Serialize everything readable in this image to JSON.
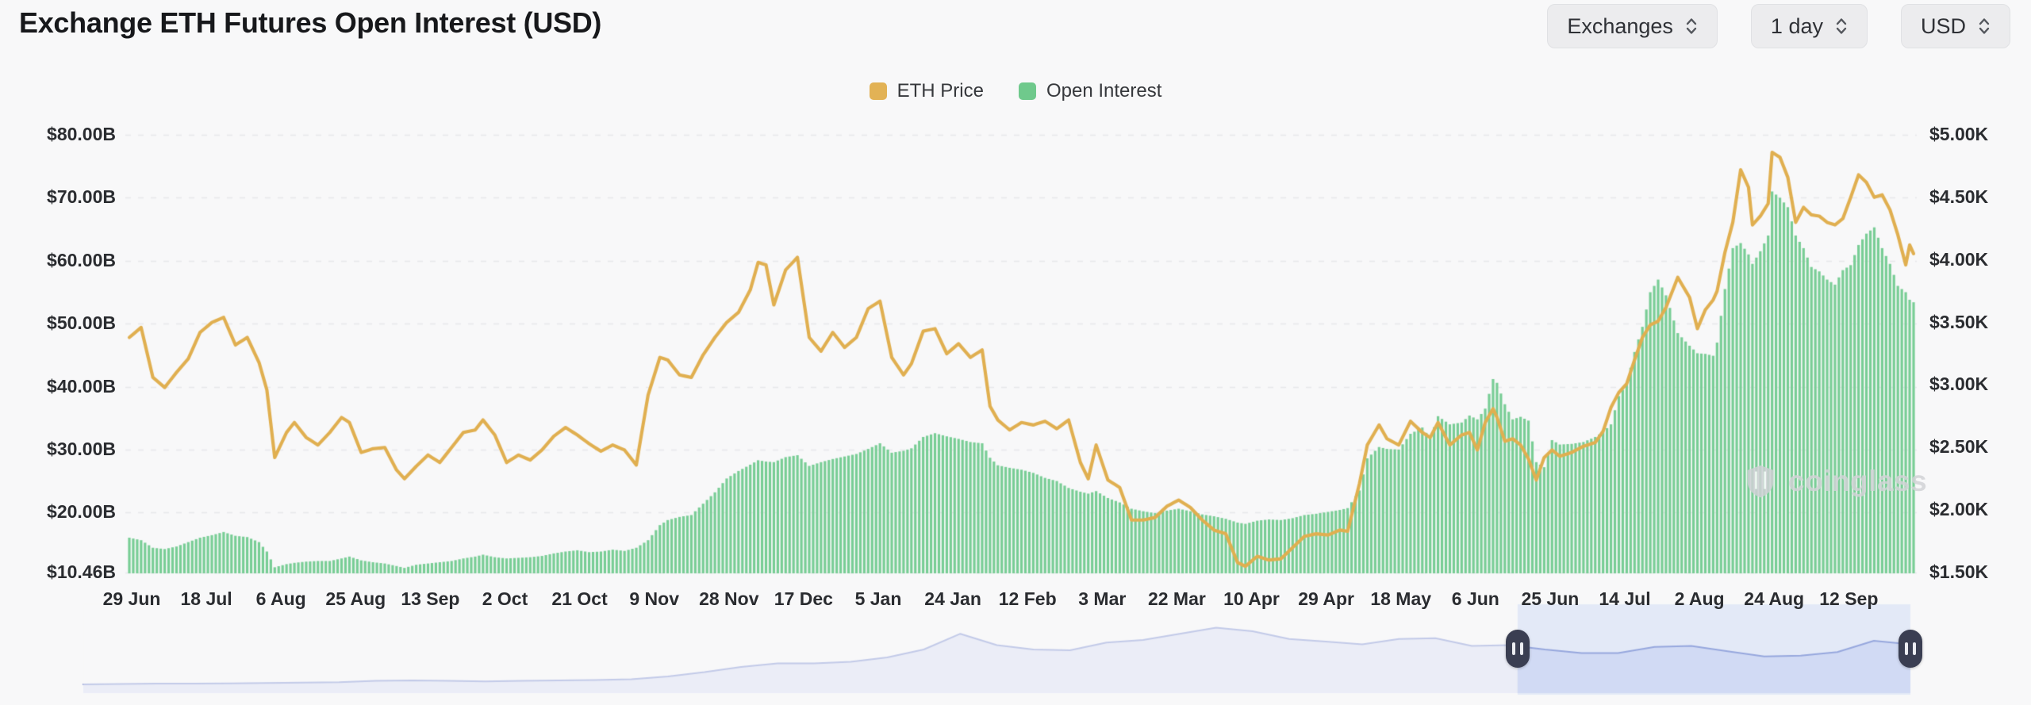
{
  "header": {
    "title": "Exchange ETH Futures Open Interest (USD)",
    "controls": [
      {
        "label": "Exchanges"
      },
      {
        "label": "1 day"
      },
      {
        "label": "USD"
      }
    ]
  },
  "legend": {
    "items": [
      {
        "label": "ETH Price",
        "color": "#e2b255"
      },
      {
        "label": "Open Interest",
        "color": "#6fc98c"
      }
    ]
  },
  "watermark": {
    "text": "coinglass"
  },
  "colors": {
    "background": "#f8f8f9",
    "gridline": "#e7e8ea",
    "bar_green": "#78cd95",
    "line_gold": "#e0af50",
    "nav_area": "#dce1f4",
    "nav_line": "#8292d2",
    "nav_selection": "#becdf3",
    "nav_handle": "#3a3e52"
  },
  "chart_data": {
    "type": "mixed",
    "title": "Exchange ETH Futures Open Interest (USD)",
    "grid": "horizontal-dashed",
    "legend_position": "top-center",
    "left_axis": {
      "title": "Open Interest (USD)",
      "min": 10.46,
      "max": 80,
      "tick_values": [
        80,
        70,
        60,
        50,
        40,
        30,
        20,
        10.46
      ],
      "tick_labels": [
        "$80.00B",
        "$70.00B",
        "$60.00B",
        "$50.00B",
        "$40.00B",
        "$30.00B",
        "$20.00B",
        "$10.46B"
      ]
    },
    "right_axis": {
      "title": "ETH Price (USD)",
      "min": 1.5,
      "max": 5.0,
      "tick_values": [
        5.0,
        4.5,
        4.0,
        3.5,
        3.0,
        2.5,
        2.0,
        1.5
      ],
      "tick_labels": [
        "$5.00K",
        "$4.50K",
        "$4.00K",
        "$3.50K",
        "$3.00K",
        "$2.50K",
        "$2.00K",
        "$1.50K"
      ]
    },
    "x_ticks": [
      "29 Jun",
      "18 Jul",
      "6 Aug",
      "25 Aug",
      "13 Sep",
      "2 Oct",
      "21 Oct",
      "9 Nov",
      "28 Nov",
      "17 Dec",
      "5 Jan",
      "24 Jan",
      "12 Feb",
      "3 Mar",
      "22 Mar",
      "10 Apr",
      "29 Apr",
      "18 May",
      "6 Jun",
      "25 Jun",
      "14 Jul",
      "2 Aug",
      "24 Aug",
      "12 Sep"
    ],
    "dates": [
      "2024-06-29",
      "2024-07-02",
      "2024-07-05",
      "2024-07-08",
      "2024-07-11",
      "2024-07-14",
      "2024-07-17",
      "2024-07-20",
      "2024-07-23",
      "2024-07-26",
      "2024-07-29",
      "2024-08-01",
      "2024-08-03",
      "2024-08-05",
      "2024-08-08",
      "2024-08-10",
      "2024-08-13",
      "2024-08-16",
      "2024-08-19",
      "2024-08-22",
      "2024-08-24",
      "2024-08-27",
      "2024-08-30",
      "2024-09-02",
      "2024-09-05",
      "2024-09-07",
      "2024-09-10",
      "2024-09-13",
      "2024-09-16",
      "2024-09-19",
      "2024-09-22",
      "2024-09-25",
      "2024-09-27",
      "2024-09-30",
      "2024-10-03",
      "2024-10-06",
      "2024-10-09",
      "2024-10-12",
      "2024-10-15",
      "2024-10-18",
      "2024-10-21",
      "2024-10-24",
      "2024-10-27",
      "2024-10-30",
      "2024-11-02",
      "2024-11-05",
      "2024-11-08",
      "2024-11-11",
      "2024-11-13",
      "2024-11-16",
      "2024-11-19",
      "2024-11-22",
      "2024-11-25",
      "2024-11-28",
      "2024-12-01",
      "2024-12-04",
      "2024-12-06",
      "2024-12-08",
      "2024-12-10",
      "2024-12-13",
      "2024-12-16",
      "2024-12-19",
      "2024-12-22",
      "2024-12-25",
      "2024-12-28",
      "2024-12-31",
      "2025-01-03",
      "2025-01-06",
      "2025-01-09",
      "2025-01-12",
      "2025-01-14",
      "2025-01-17",
      "2025-01-20",
      "2025-01-23",
      "2025-01-26",
      "2025-01-29",
      "2025-02-01",
      "2025-02-03",
      "2025-02-05",
      "2025-02-08",
      "2025-02-11",
      "2025-02-14",
      "2025-02-17",
      "2025-02-20",
      "2025-02-23",
      "2025-02-26",
      "2025-02-28",
      "2025-03-02",
      "2025-03-05",
      "2025-03-08",
      "2025-03-11",
      "2025-03-14",
      "2025-03-17",
      "2025-03-20",
      "2025-03-23",
      "2025-03-26",
      "2025-03-29",
      "2025-04-01",
      "2025-04-04",
      "2025-04-07",
      "2025-04-09",
      "2025-04-12",
      "2025-04-15",
      "2025-04-18",
      "2025-04-21",
      "2025-04-24",
      "2025-04-27",
      "2025-04-30",
      "2025-05-03",
      "2025-05-05",
      "2025-05-08",
      "2025-05-10",
      "2025-05-13",
      "2025-05-15",
      "2025-05-18",
      "2025-05-21",
      "2025-05-24",
      "2025-05-26",
      "2025-05-28",
      "2025-05-31",
      "2025-06-03",
      "2025-06-05",
      "2025-06-07",
      "2025-06-09",
      "2025-06-11",
      "2025-06-12",
      "2025-06-14",
      "2025-06-16",
      "2025-06-18",
      "2025-06-20",
      "2025-06-22",
      "2025-06-24",
      "2025-06-26",
      "2025-06-28",
      "2025-07-01",
      "2025-07-04",
      "2025-07-07",
      "2025-07-09",
      "2025-07-11",
      "2025-07-13",
      "2025-07-15",
      "2025-07-17",
      "2025-07-19",
      "2025-07-21",
      "2025-07-23",
      "2025-07-25",
      "2025-07-28",
      "2025-07-31",
      "2025-08-02",
      "2025-08-04",
      "2025-08-06",
      "2025-08-07",
      "2025-08-09",
      "2025-08-11",
      "2025-08-13",
      "2025-08-15",
      "2025-08-16",
      "2025-08-18",
      "2025-08-20",
      "2025-08-21",
      "2025-08-23",
      "2025-08-25",
      "2025-08-27",
      "2025-08-29",
      "2025-08-31",
      "2025-09-02",
      "2025-09-04",
      "2025-09-06",
      "2025-09-08",
      "2025-09-10",
      "2025-09-12",
      "2025-09-14",
      "2025-09-16",
      "2025-09-18",
      "2025-09-20",
      "2025-09-22",
      "2025-09-24",
      "2025-09-25",
      "2025-09-26"
    ],
    "series": [
      {
        "name": "Open Interest",
        "type": "bar",
        "axis": "left",
        "unit": "USD billions",
        "color": "#78cd95",
        "values": [
          16.0,
          15.6,
          14.4,
          14.2,
          14.6,
          15.3,
          16.0,
          16.4,
          16.9,
          16.3,
          16.1,
          15.3,
          13.8,
          11.3,
          11.8,
          12.0,
          12.2,
          12.3,
          12.3,
          12.7,
          13.0,
          12.4,
          12.1,
          11.9,
          11.5,
          11.2,
          11.7,
          11.9,
          12.1,
          12.3,
          12.7,
          13.0,
          13.3,
          12.9,
          12.7,
          12.8,
          12.9,
          13.1,
          13.5,
          13.8,
          14.0,
          13.7,
          13.8,
          14.1,
          13.9,
          14.4,
          15.6,
          18.0,
          18.8,
          19.3,
          19.6,
          21.4,
          23.2,
          25.4,
          26.6,
          27.6,
          28.3,
          28.1,
          28.0,
          28.8,
          29.1,
          27.4,
          28.0,
          28.5,
          28.9,
          29.3,
          30.1,
          31.0,
          29.5,
          29.8,
          30.2,
          32.0,
          32.6,
          32.1,
          31.7,
          31.2,
          31.0,
          28.7,
          27.5,
          27.1,
          26.8,
          26.3,
          25.5,
          25.0,
          23.9,
          23.3,
          23.0,
          23.4,
          22.3,
          21.6,
          20.6,
          20.2,
          19.9,
          20.3,
          20.6,
          20.2,
          19.7,
          19.4,
          19.0,
          18.4,
          18.2,
          18.7,
          18.9,
          18.8,
          19.1,
          19.6,
          19.8,
          20.1,
          20.4,
          20.7,
          23.5,
          28.6,
          30.4,
          30.1,
          30.0,
          32.5,
          33.5,
          31.8,
          35.3,
          34.0,
          34.3,
          35.4,
          34.8,
          36.5,
          41.2,
          40.6,
          37.2,
          34.8,
          35.2,
          34.6,
          28.0,
          27.2,
          31.5,
          30.8,
          30.9,
          31.2,
          32.0,
          32.8,
          34.0,
          38.5,
          40.5,
          45.5,
          49.5,
          55.0,
          57.0,
          54.5,
          48.5,
          46.5,
          45.3,
          45.2,
          44.9,
          47.0,
          55.5,
          62.0,
          62.8,
          61.0,
          59.5,
          61.5,
          64.0,
          71.0,
          70.0,
          68.5,
          64.0,
          62.0,
          59.0,
          58.3,
          57.0,
          56.2,
          58.5,
          59.3,
          62.5,
          64.3,
          65.3,
          62.0,
          59.5,
          56.0,
          55.0,
          53.8,
          53.4
        ]
      },
      {
        "name": "ETH Price",
        "type": "line",
        "axis": "right",
        "unit": "USD thousands",
        "color": "#e0af50",
        "values": [
          3.38,
          3.46,
          3.06,
          2.98,
          3.1,
          3.21,
          3.42,
          3.5,
          3.54,
          3.32,
          3.38,
          3.18,
          2.96,
          2.42,
          2.62,
          2.7,
          2.58,
          2.52,
          2.62,
          2.74,
          2.7,
          2.46,
          2.49,
          2.5,
          2.32,
          2.25,
          2.35,
          2.44,
          2.38,
          2.5,
          2.62,
          2.64,
          2.72,
          2.6,
          2.38,
          2.44,
          2.4,
          2.48,
          2.59,
          2.66,
          2.6,
          2.53,
          2.47,
          2.52,
          2.48,
          2.36,
          2.92,
          3.22,
          3.2,
          3.08,
          3.06,
          3.24,
          3.38,
          3.5,
          3.58,
          3.76,
          3.98,
          3.96,
          3.64,
          3.92,
          4.02,
          3.38,
          3.27,
          3.42,
          3.3,
          3.38,
          3.61,
          3.67,
          3.22,
          3.08,
          3.17,
          3.43,
          3.45,
          3.25,
          3.33,
          3.22,
          3.28,
          2.83,
          2.72,
          2.64,
          2.7,
          2.68,
          2.71,
          2.65,
          2.72,
          2.38,
          2.25,
          2.52,
          2.24,
          2.18,
          1.92,
          1.92,
          1.94,
          2.03,
          2.08,
          2.02,
          1.92,
          1.84,
          1.81,
          1.58,
          1.55,
          1.63,
          1.6,
          1.61,
          1.7,
          1.79,
          1.81,
          1.8,
          1.84,
          1.83,
          2.21,
          2.52,
          2.68,
          2.57,
          2.52,
          2.71,
          2.62,
          2.58,
          2.7,
          2.52,
          2.6,
          2.62,
          2.48,
          2.7,
          2.81,
          2.74,
          2.55,
          2.57,
          2.52,
          2.41,
          2.24,
          2.42,
          2.48,
          2.43,
          2.46,
          2.51,
          2.54,
          2.63,
          2.82,
          2.94,
          3.01,
          3.2,
          3.38,
          3.48,
          3.51,
          3.62,
          3.86,
          3.7,
          3.45,
          3.6,
          3.68,
          3.75,
          4.06,
          4.3,
          4.72,
          4.58,
          4.28,
          4.35,
          4.45,
          4.86,
          4.82,
          4.66,
          4.3,
          4.42,
          4.36,
          4.35,
          4.3,
          4.28,
          4.33,
          4.5,
          4.68,
          4.62,
          4.5,
          4.52,
          4.4,
          4.2,
          3.96,
          4.12,
          4.05
        ]
      }
    ]
  },
  "navigator": {
    "values": [
      0.1,
      0.105,
      0.11,
      0.11,
      0.112,
      0.115,
      0.12,
      0.125,
      0.14,
      0.145,
      0.14,
      0.135,
      0.14,
      0.145,
      0.15,
      0.16,
      0.19,
      0.24,
      0.3,
      0.34,
      0.34,
      0.36,
      0.41,
      0.5,
      0.68,
      0.55,
      0.5,
      0.49,
      0.58,
      0.61,
      0.68,
      0.75,
      0.71,
      0.62,
      0.59,
      0.56,
      0.62,
      0.63,
      0.54,
      0.55,
      0.5,
      0.46,
      0.46,
      0.53,
      0.54,
      0.48,
      0.42,
      0.43,
      0.47,
      0.6,
      0.56
    ],
    "selection": {
      "start": 0.785,
      "end": 1.0
    }
  }
}
